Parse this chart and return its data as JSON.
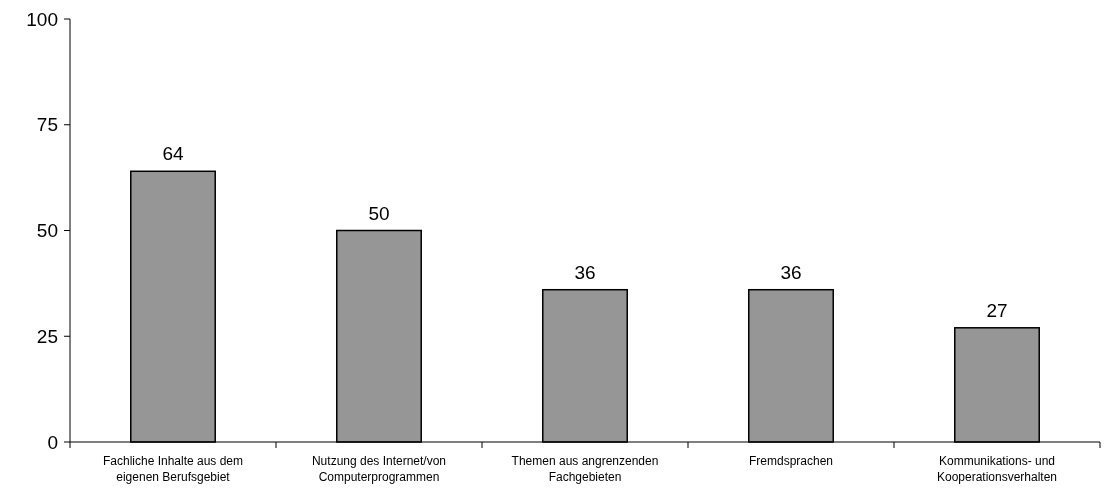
{
  "chart_data": {
    "type": "bar",
    "categories": [
      "Fachliche Inhalte aus dem eigenen Berufsgebiet",
      "Nutzung des Internet/von Computerprogrammen",
      "Themen aus angrenzenden Fachgebieten",
      "Fremdsprachen",
      "Kommunikations- und Kooperationsverhalten"
    ],
    "values": [
      64,
      50,
      36,
      36,
      27
    ],
    "color": "#969696",
    "ylim": [
      0,
      100
    ],
    "yticks": [
      0,
      25,
      50,
      75,
      100
    ],
    "grid": false,
    "data_labels": true
  }
}
